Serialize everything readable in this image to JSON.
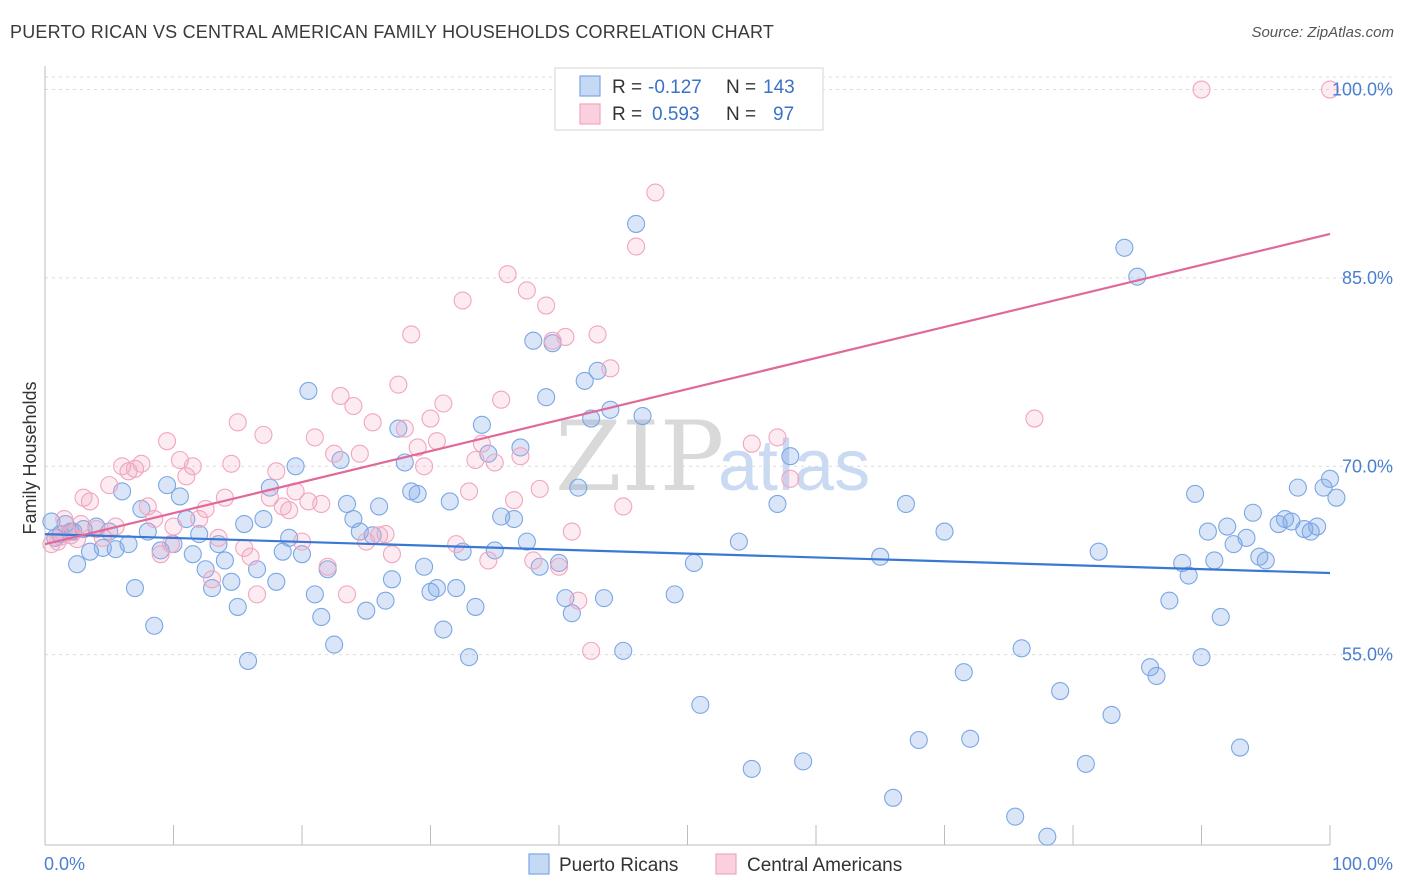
{
  "header": {
    "title": "PUERTO RICAN VS CENTRAL AMERICAN FAMILY HOUSEHOLDS CORRELATION CHART",
    "source": "Source: ZipAtlas.com"
  },
  "watermark": {
    "zip": "ZIP",
    "atlas": "atlas"
  },
  "legend": {
    "r_label": "R =",
    "n_label": "N =",
    "series": [
      {
        "r": "-0.127",
        "n": "143"
      },
      {
        "r": "0.593",
        "n": "97"
      }
    ]
  },
  "chart_data": {
    "type": "scatter",
    "title": "PUERTO RICAN VS CENTRAL AMERICAN FAMILY HOUSEHOLDS CORRELATION CHART",
    "xlabel": "",
    "ylabel": "Family Households",
    "xlim": [
      0,
      100
    ],
    "ylim": [
      40,
      101
    ],
    "x_tick_labels": [
      "0.0%",
      "100.0%"
    ],
    "y_ticks": [
      55,
      70,
      85,
      100
    ],
    "y_tick_labels": [
      "55.0%",
      "70.0%",
      "85.0%",
      "100.0%"
    ],
    "grid": true,
    "legend_placement": "bottom",
    "series": [
      {
        "name": "Puerto Ricans",
        "color": "#7aa7e6",
        "line_color": "#3a78d4",
        "trend": {
          "x": [
            0,
            100
          ],
          "y": [
            64.6,
            61.5
          ]
        },
        "points": [
          [
            0.5,
            65.6
          ],
          [
            0.8,
            64.3
          ],
          [
            1.2,
            64.6
          ],
          [
            1.6,
            65.4
          ],
          [
            2.0,
            64.8
          ],
          [
            2.5,
            62.2
          ],
          [
            3.0,
            65.0
          ],
          [
            3.5,
            63.2
          ],
          [
            4.0,
            65.2
          ],
          [
            4.5,
            63.5
          ],
          [
            5.0,
            64.8
          ],
          [
            5.5,
            63.4
          ],
          [
            6.0,
            68.0
          ],
          [
            6.5,
            63.8
          ],
          [
            7.0,
            60.3
          ],
          [
            7.5,
            66.6
          ],
          [
            8.0,
            64.8
          ],
          [
            8.5,
            57.3
          ],
          [
            9.0,
            63.3
          ],
          [
            9.5,
            68.5
          ],
          [
            10.0,
            63.8
          ],
          [
            10.5,
            67.6
          ],
          [
            11.0,
            65.8
          ],
          [
            11.5,
            63.0
          ],
          [
            12.0,
            64.6
          ],
          [
            12.5,
            61.8
          ],
          [
            13.0,
            60.3
          ],
          [
            13.5,
            63.8
          ],
          [
            14.0,
            62.5
          ],
          [
            14.5,
            60.8
          ],
          [
            15.0,
            58.8
          ],
          [
            15.5,
            65.4
          ],
          [
            15.8,
            54.5
          ],
          [
            16.5,
            61.8
          ],
          [
            17.0,
            65.8
          ],
          [
            17.5,
            68.3
          ],
          [
            18.0,
            60.8
          ],
          [
            18.5,
            63.2
          ],
          [
            19.0,
            64.3
          ],
          [
            19.5,
            70.0
          ],
          [
            20.0,
            63.0
          ],
          [
            20.5,
            76.0
          ],
          [
            21.0,
            59.8
          ],
          [
            21.5,
            58.0
          ],
          [
            22.0,
            61.8
          ],
          [
            22.5,
            55.8
          ],
          [
            23.0,
            70.5
          ],
          [
            23.5,
            67.0
          ],
          [
            24.0,
            65.8
          ],
          [
            24.5,
            64.8
          ],
          [
            25.0,
            58.5
          ],
          [
            25.5,
            64.5
          ],
          [
            26.0,
            66.8
          ],
          [
            26.5,
            59.3
          ],
          [
            27.0,
            61.0
          ],
          [
            27.5,
            73.0
          ],
          [
            28.0,
            70.3
          ],
          [
            28.5,
            68.0
          ],
          [
            29.0,
            67.8
          ],
          [
            29.5,
            62.0
          ],
          [
            30.0,
            60.0
          ],
          [
            30.5,
            60.3
          ],
          [
            31.0,
            57.0
          ],
          [
            31.5,
            67.2
          ],
          [
            32.0,
            60.3
          ],
          [
            32.5,
            63.2
          ],
          [
            33.0,
            54.8
          ],
          [
            33.5,
            58.8
          ],
          [
            34.0,
            73.3
          ],
          [
            34.5,
            71.0
          ],
          [
            35.0,
            63.3
          ],
          [
            35.5,
            66.0
          ],
          [
            36.5,
            65.8
          ],
          [
            37.0,
            71.5
          ],
          [
            37.5,
            64.0
          ],
          [
            38.0,
            80.0
          ],
          [
            38.5,
            62.0
          ],
          [
            39.0,
            75.5
          ],
          [
            39.5,
            79.8
          ],
          [
            40.0,
            62.3
          ],
          [
            40.5,
            59.5
          ],
          [
            41.0,
            58.3
          ],
          [
            41.5,
            68.3
          ],
          [
            42.0,
            76.8
          ],
          [
            42.5,
            73.8
          ],
          [
            43.0,
            77.6
          ],
          [
            43.5,
            59.5
          ],
          [
            44.0,
            74.5
          ],
          [
            45.0,
            55.3
          ],
          [
            46.0,
            89.3
          ],
          [
            46.5,
            74.0
          ],
          [
            49.0,
            59.8
          ],
          [
            50.5,
            62.3
          ],
          [
            51.0,
            51.0
          ],
          [
            54.0,
            64.0
          ],
          [
            55.0,
            45.9
          ],
          [
            57.0,
            67.0
          ],
          [
            58.0,
            70.8
          ],
          [
            59.0,
            46.5
          ],
          [
            65.0,
            62.8
          ],
          [
            66.0,
            43.6
          ],
          [
            67.0,
            67.0
          ],
          [
            68.0,
            48.2
          ],
          [
            70.0,
            64.8
          ],
          [
            71.5,
            53.6
          ],
          [
            72.0,
            48.3
          ],
          [
            75.5,
            42.1
          ],
          [
            76.0,
            55.5
          ],
          [
            78.0,
            40.5
          ],
          [
            79.0,
            52.1
          ],
          [
            81.0,
            46.3
          ],
          [
            82.0,
            63.2
          ],
          [
            83.0,
            50.2
          ],
          [
            84.0,
            87.4
          ],
          [
            85.0,
            85.1
          ],
          [
            86.0,
            54.0
          ],
          [
            86.5,
            53.3
          ],
          [
            87.5,
            59.3
          ],
          [
            88.5,
            62.3
          ],
          [
            89.0,
            61.3
          ],
          [
            89.5,
            67.8
          ],
          [
            90.0,
            54.8
          ],
          [
            90.5,
            64.8
          ],
          [
            91.0,
            62.5
          ],
          [
            91.5,
            58.0
          ],
          [
            92.0,
            65.2
          ],
          [
            92.5,
            63.8
          ],
          [
            93.0,
            47.6
          ],
          [
            93.5,
            64.3
          ],
          [
            94.0,
            66.3
          ],
          [
            94.5,
            62.8
          ],
          [
            95.0,
            62.5
          ],
          [
            96.0,
            65.4
          ],
          [
            96.5,
            65.8
          ],
          [
            97.0,
            65.6
          ],
          [
            97.5,
            68.3
          ],
          [
            98.0,
            65.0
          ],
          [
            98.5,
            64.8
          ],
          [
            99.0,
            65.2
          ],
          [
            99.5,
            68.3
          ],
          [
            100.0,
            69.0
          ],
          [
            100.5,
            67.5
          ],
          [
            2.2,
            64.8
          ]
        ]
      },
      {
        "name": "Central Americans",
        "color": "#f2a5bf",
        "line_color": "#e0699a",
        "trend": {
          "x": [
            0,
            100
          ],
          "y": [
            63.8,
            88.5
          ]
        },
        "points": [
          [
            0.5,
            63.8
          ],
          [
            1.0,
            64.0
          ],
          [
            1.5,
            65.8
          ],
          [
            2.0,
            64.5
          ],
          [
            2.5,
            64.2
          ],
          [
            3.0,
            67.5
          ],
          [
            3.5,
            67.2
          ],
          [
            4.0,
            65.0
          ],
          [
            4.5,
            64.3
          ],
          [
            5.0,
            68.5
          ],
          [
            5.5,
            65.2
          ],
          [
            6.0,
            70.0
          ],
          [
            6.5,
            69.6
          ],
          [
            7.0,
            69.8
          ],
          [
            7.5,
            70.2
          ],
          [
            8.0,
            66.8
          ],
          [
            8.5,
            65.8
          ],
          [
            9.0,
            63.0
          ],
          [
            9.5,
            72.0
          ],
          [
            10.0,
            65.2
          ],
          [
            10.5,
            70.5
          ],
          [
            11.0,
            69.2
          ],
          [
            11.5,
            70.0
          ],
          [
            12.0,
            65.8
          ],
          [
            12.5,
            66.6
          ],
          [
            13.0,
            61.0
          ],
          [
            13.5,
            64.3
          ],
          [
            14.0,
            67.5
          ],
          [
            14.5,
            70.2
          ],
          [
            15.0,
            73.5
          ],
          [
            15.5,
            63.5
          ],
          [
            16.0,
            62.8
          ],
          [
            16.5,
            59.8
          ],
          [
            17.0,
            72.5
          ],
          [
            17.5,
            67.5
          ],
          [
            18.0,
            69.6
          ],
          [
            18.5,
            66.8
          ],
          [
            19.0,
            66.5
          ],
          [
            19.5,
            68.0
          ],
          [
            20.0,
            64.0
          ],
          [
            20.5,
            67.2
          ],
          [
            21.0,
            72.3
          ],
          [
            21.5,
            67.0
          ],
          [
            22.0,
            62.0
          ],
          [
            22.5,
            71.0
          ],
          [
            23.0,
            75.6
          ],
          [
            23.5,
            59.8
          ],
          [
            24.0,
            74.8
          ],
          [
            24.5,
            71.0
          ],
          [
            25.0,
            64.0
          ],
          [
            25.5,
            73.5
          ],
          [
            26.0,
            64.5
          ],
          [
            26.5,
            64.6
          ],
          [
            27.0,
            63.0
          ],
          [
            27.5,
            76.5
          ],
          [
            28.0,
            73.0
          ],
          [
            28.5,
            80.5
          ],
          [
            29.0,
            71.5
          ],
          [
            29.5,
            70.0
          ],
          [
            30.0,
            73.8
          ],
          [
            30.5,
            72.0
          ],
          [
            31.0,
            75.0
          ],
          [
            32.0,
            63.8
          ],
          [
            32.5,
            83.2
          ],
          [
            33.0,
            68.0
          ],
          [
            33.5,
            70.5
          ],
          [
            34.0,
            71.8
          ],
          [
            34.5,
            62.5
          ],
          [
            35.0,
            70.3
          ],
          [
            35.5,
            75.3
          ],
          [
            36.0,
            85.3
          ],
          [
            36.5,
            67.3
          ],
          [
            37.0,
            70.8
          ],
          [
            37.5,
            84.0
          ],
          [
            38.0,
            62.5
          ],
          [
            38.5,
            68.2
          ],
          [
            39.0,
            82.8
          ],
          [
            39.5,
            80.0
          ],
          [
            40.0,
            62.0
          ],
          [
            40.5,
            80.3
          ],
          [
            41.0,
            64.8
          ],
          [
            42.5,
            55.3
          ],
          [
            43.0,
            80.5
          ],
          [
            45.0,
            66.8
          ],
          [
            46.0,
            87.5
          ],
          [
            47.5,
            91.8
          ],
          [
            55.0,
            71.8
          ],
          [
            57.0,
            72.3
          ],
          [
            58.0,
            69.0
          ],
          [
            77.0,
            73.8
          ],
          [
            90.0,
            100.0
          ],
          [
            100.0,
            100.0
          ],
          [
            41.5,
            59.3
          ],
          [
            9.8,
            63.8
          ],
          [
            2.8,
            65.4
          ],
          [
            1.2,
            64.4
          ],
          [
            44.0,
            77.8
          ]
        ]
      }
    ]
  },
  "bottom_legend": [
    {
      "label": "Puerto Ricans"
    },
    {
      "label": "Central Americans"
    }
  ]
}
